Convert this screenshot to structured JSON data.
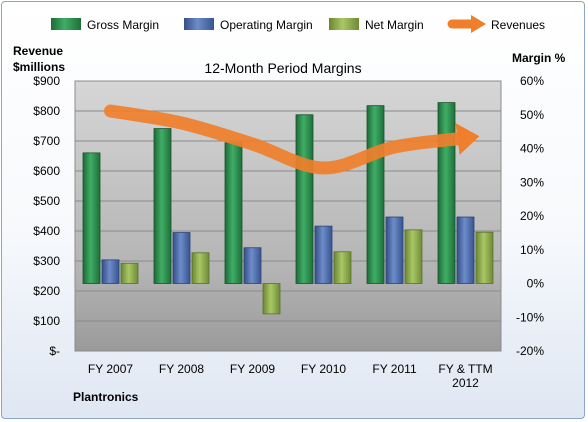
{
  "chart_data": {
    "type": "bar",
    "title": "12-Month Period Margins",
    "company_label": "Plantronics",
    "left_axis": {
      "label_line1": "Revenue",
      "label_line2": "$millions",
      "range": [
        0,
        900
      ],
      "ticks": [
        "$-",
        "$100",
        "$200",
        "$300",
        "$400",
        "$500",
        "$600",
        "$700",
        "$800",
        "$900"
      ]
    },
    "right_axis": {
      "label": "Margin %",
      "range": [
        -20,
        60
      ],
      "ticks": [
        "-20%",
        "-10%",
        "0%",
        "10%",
        "20%",
        "30%",
        "40%",
        "50%",
        "60%"
      ]
    },
    "categories": [
      [
        "FY 2007"
      ],
      [
        "FY 2008"
      ],
      [
        "FY 2009"
      ],
      [
        "FY 2010"
      ],
      [
        "FY 2011"
      ],
      [
        "FY & TTM",
        "2012"
      ]
    ],
    "legend": {
      "position": "top",
      "entries": [
        "Gross Margin",
        "Operating Margin",
        "Net Margin",
        "Revenues"
      ]
    },
    "series": [
      {
        "name": "Gross Margin",
        "axis": "right",
        "color": "#2e8b4e",
        "values": [
          38.7,
          45.9,
          41.7,
          50.0,
          52.7,
          53.6
        ]
      },
      {
        "name": "Operating Margin",
        "axis": "right",
        "color": "#4f6fae",
        "values": [
          7.0,
          15.1,
          10.6,
          17.0,
          19.7,
          19.7
        ]
      },
      {
        "name": "Net Margin",
        "axis": "right",
        "color": "#8fae4f",
        "values": [
          6.0,
          9.1,
          -9.0,
          9.4,
          15.9,
          15.2
        ]
      },
      {
        "name": "Revenues",
        "axis": "left",
        "color": "#f07f2c",
        "values": [
          800,
          760,
          690,
          610,
          680,
          710
        ]
      }
    ],
    "grid": true,
    "plot_background": "#c0c0c0"
  }
}
